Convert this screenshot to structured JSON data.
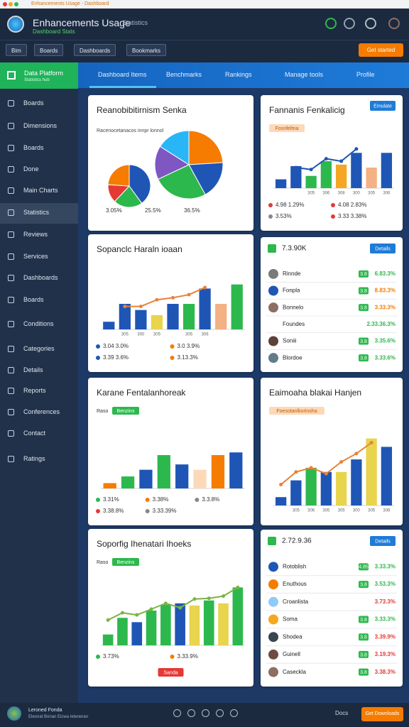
{
  "browser": {
    "address": "Enhancements Usage - Dashboard"
  },
  "header": {
    "title": "Enhancements Usage",
    "badge": "Statistics",
    "subtitle": "Dashboard Stats"
  },
  "toolbar": {
    "buttons": [
      "Bim",
      "Boards",
      "Dashboards",
      "Bookmarks"
    ],
    "action": "Get started"
  },
  "sidebar": {
    "brand": "Data Platform",
    "brand_sub": "Statistics hub",
    "active": 5,
    "items": [
      "Boards",
      "Dimensions",
      "Boards",
      "Done",
      "Main Charts",
      "Statistics",
      "Reviews",
      "Services",
      "Dashboards",
      "Boards",
      "Conditions",
      "Categories",
      "Details",
      "Reports",
      "Conferences",
      "Contact",
      "Ratings"
    ]
  },
  "tabs": {
    "active": 0,
    "items": [
      "Dashboard Items",
      "Benchmarks",
      "Rankings",
      "Manage tools",
      "Profile"
    ]
  },
  "cards": [
    {
      "kind": "pie",
      "title": "Reanobibitirnism Senka",
      "subtitle": "Racenocetanacos innpr lonnol",
      "pies": [
        {
          "values": [
            40,
            22,
            14,
            24
          ],
          "colors": [
            "#1f56b5",
            "#2db84d",
            "#e53935",
            "#f57c00"
          ]
        },
        {
          "values": [
            24,
            18,
            26,
            16,
            16
          ],
          "colors": [
            "#f57c00",
            "#1f56b5",
            "#2db84d",
            "#7e57c2",
            "#29b6f6"
          ]
        }
      ],
      "labels": [
        "3.05%",
        "25.5%",
        "36.5%"
      ]
    },
    {
      "kind": "bars",
      "title": "Fannanis Fenkalicig",
      "tag": "Fosnfeltna",
      "button": "Emulate",
      "categories": [
        null,
        null,
        "305",
        "306",
        "308",
        "300",
        "305",
        "306"
      ],
      "values": [
        18,
        45,
        25,
        55,
        48,
        72,
        42,
        72
      ],
      "colors": [
        "#1f56b5",
        "#1f56b5",
        "#2db84d",
        "#2db84d",
        "#f5a623",
        "#1f56b5",
        "#f4b183",
        "#1f56b5"
      ],
      "line": [
        null,
        42,
        38,
        60,
        55,
        80,
        null,
        null
      ],
      "line_color": "#1f56b5",
      "legend": [
        {
          "text": "4.98 1.29%",
          "color": "#e53935"
        },
        {
          "text": "4.08 2.83%",
          "color": "#e53935"
        },
        {
          "text": "3.53%",
          "color": "#888888"
        },
        {
          "text": "3.33 3.38%",
          "color": "#e53935"
        }
      ]
    },
    {
      "kind": "bars",
      "title": "Sopanclc Haraln ioaan",
      "categories": [
        null,
        "305",
        "300",
        "305",
        null,
        "305",
        "306",
        null,
        null
      ],
      "values": [
        15,
        50,
        38,
        28,
        50,
        50,
        80,
        50,
        88
      ],
      "colors": [
        "#1f56b5",
        "#1f56b5",
        "#1f56b5",
        "#e8d44d",
        "#1f56b5",
        "#2db84d",
        "#1f56b5",
        "#f4b183",
        "#2db84d"
      ],
      "line": [
        null,
        45,
        45,
        58,
        62,
        68,
        82,
        null,
        null
      ],
      "line_color": "#e8833a",
      "legend": [
        {
          "text": "3.04 3.0%",
          "color": "#1f56b5"
        },
        {
          "text": "3.0 3.9%",
          "color": "#f57c00"
        },
        {
          "text": "3.39 3.6%",
          "color": "#1f56b5"
        },
        {
          "text": "3.13.3%",
          "color": "#f57c00"
        }
      ]
    },
    {
      "kind": "list",
      "title": "7.3.90K",
      "button": "Details",
      "rows": [
        {
          "name": "Rinnde",
          "badge": "3.8",
          "value": "6.83.3%",
          "color": "#2db84d",
          "avatar": "#7a7a7a"
        },
        {
          "name": "Fonpla",
          "badge": "3.8",
          "value": "8.83.3%",
          "color": "#f57c00",
          "avatar": "#1f56b5"
        },
        {
          "name": "Bonnelo",
          "badge": "3.8",
          "value": "3.33.3%",
          "color": "#f57c00",
          "avatar": "#8d6e63"
        },
        {
          "name": "Foundes",
          "value": "2.33.36.3%",
          "color": "#2db84d"
        },
        {
          "name": "Soniii",
          "badge": "3.8",
          "value": "3.35.6%",
          "color": "#2db84d",
          "avatar": "#5d4037"
        },
        {
          "name": "Blordoe",
          "badge": "3.8",
          "value": "3.33.6%",
          "color": "#2db84d",
          "avatar": "#607d8b"
        }
      ]
    },
    {
      "kind": "bars",
      "title": "Karane Fentalanhoreak",
      "tag_prefix": "Raso",
      "tag": "Benzins",
      "tag_color": "#2db84d",
      "values": [
        8,
        18,
        28,
        50,
        36,
        28,
        50,
        54
      ],
      "colors": [
        "#f57c00",
        "#2db84d",
        "#1f56b5",
        "#2db84d",
        "#1f56b5",
        "#fcd9b8",
        "#f57c00",
        "#1f56b5"
      ],
      "legend": [
        {
          "text": "3.31%",
          "color": "#2db84d"
        },
        {
          "text": "3.38%",
          "color": "#f57c00"
        },
        {
          "text": "3.3.8%",
          "color": "#888888"
        },
        {
          "text": "3.38.8%",
          "color": "#e53935"
        },
        {
          "text": "3.33.39%",
          "color": "#888888"
        }
      ]
    },
    {
      "kind": "bars",
      "title": "Eaimoaha blakai Hanjen",
      "tag": "Foesotanlkorinsha",
      "categories": [
        null,
        "305",
        "306",
        "305",
        "305",
        "300",
        "305",
        "306"
      ],
      "values": [
        10,
        30,
        45,
        40,
        40,
        55,
        80,
        70
      ],
      "colors": [
        "#1f56b5",
        "#1f56b5",
        "#2db84d",
        "#1f56b5",
        "#e8d44d",
        "#1f56b5",
        "#e8d44d",
        "#1f56b5"
      ],
      "line": [
        25,
        40,
        45,
        38,
        52,
        62,
        75,
        null
      ],
      "line_color": "#e8833a"
    },
    {
      "kind": "bars",
      "title": "Soporfig Ihenatari Ihoeks",
      "tag_prefix": "Raso",
      "tag": "Benzins",
      "tag_color": "#2db84d",
      "action": "Sanda",
      "values": [
        15,
        38,
        32,
        48,
        56,
        58,
        55,
        62,
        58,
        80
      ],
      "colors": [
        "#2db84d",
        "#2db84d",
        "#1f56b5",
        "#2db84d",
        "#2db84d",
        "#1f56b5",
        "#e8d44d",
        "#2db84d",
        "#e8d44d",
        "#2db84d"
      ],
      "line": [
        35,
        45,
        42,
        50,
        58,
        52,
        64,
        65,
        68,
        80
      ],
      "line_color": "#7cb342",
      "legend": [
        {
          "text": "3.73%",
          "color": "#2db84d"
        },
        {
          "text": "3.33.9%",
          "color": "#f57c00"
        }
      ]
    },
    {
      "kind": "list",
      "title": "2.72.9.36",
      "button": "Details",
      "rows": [
        {
          "name": "Rotoblish",
          "badge": "4.85",
          "value": "3.33.3%",
          "color": "#2db84d",
          "avatar": "#1f56b5"
        },
        {
          "name": "Enuthous",
          "badge": "3.8",
          "value": "3.53.3%",
          "color": "#2db84d",
          "avatar": "#f57c00"
        },
        {
          "name": "Croanlista",
          "value": "3.73.3%",
          "color": "#e53935",
          "avatar": "#90caf9"
        },
        {
          "name": "Soma",
          "badge": "3.8",
          "value": "3.33.3%",
          "color": "#2db84d",
          "avatar": "#f5a623"
        },
        {
          "name": "Shodea",
          "badge": "3.8",
          "value": "3.39.9%",
          "color": "#e53935",
          "avatar": "#37474f"
        },
        {
          "name": "Guinell",
          "badge": "3.8",
          "value": "3.19.3%",
          "color": "#e53935",
          "avatar": "#6d4c41"
        },
        {
          "name": "Caseckla",
          "badge": "3.8",
          "value": "3.38.3%",
          "color": "#e53935",
          "avatar": "#8d6e63"
        }
      ]
    }
  ],
  "footer": {
    "title": "Leroned Fonda",
    "subtitle": "Eleonat Bonan Eicwa Ieteneran",
    "link": "Docs",
    "action": "Get Downloads"
  }
}
